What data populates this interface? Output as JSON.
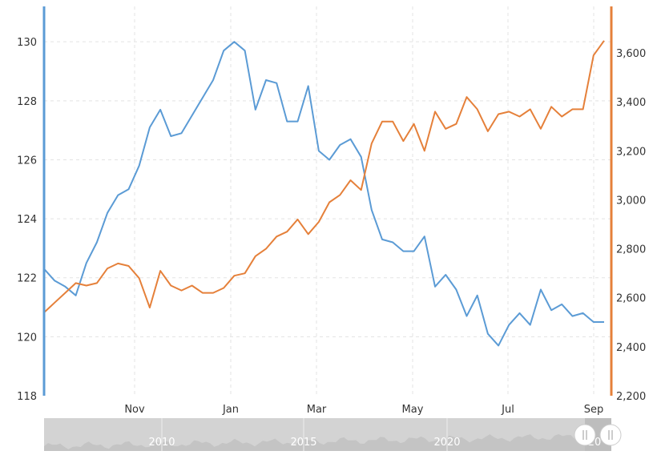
{
  "chart_data": {
    "type": "line",
    "x_unit": "week",
    "x_ticks": [
      "Nov",
      "Jan",
      "Mar",
      "May",
      "Jul",
      "Sep"
    ],
    "y_left": {
      "ticks": [
        "118",
        "120",
        "122",
        "124",
        "126",
        "128",
        "130"
      ],
      "range": [
        118,
        131.2
      ],
      "color": "#5b9bd5"
    },
    "y_right": {
      "ticks": [
        "2,200",
        "2,400",
        "2,600",
        "2,800",
        "3,000",
        "3,200",
        "3,400",
        "3,600"
      ],
      "range": [
        2200,
        3790
      ],
      "color": "#e5803a"
    },
    "grid": true,
    "series": [
      {
        "axis": "left",
        "color": "#5b9bd5",
        "values": [
          122.3,
          121.9,
          121.7,
          121.4,
          122.5,
          123.2,
          124.2,
          124.8,
          125.0,
          125.8,
          127.1,
          127.7,
          126.8,
          126.9,
          127.5,
          128.1,
          128.7,
          129.7,
          130.0,
          129.7,
          127.7,
          128.7,
          128.6,
          127.3,
          127.3,
          128.5,
          126.3,
          126.0,
          126.5,
          126.7,
          126.1,
          124.3,
          123.3,
          123.2,
          122.9,
          122.9,
          123.4,
          121.7,
          122.1,
          121.6,
          120.7,
          121.4,
          120.1,
          119.7,
          120.4,
          120.8,
          120.4,
          121.6,
          120.9,
          121.1,
          120.7,
          120.8,
          120.5,
          120.5
        ]
      },
      {
        "axis": "right",
        "color": "#e5803a",
        "values": [
          2540,
          2580,
          2620,
          2660,
          2650,
          2660,
          2720,
          2740,
          2730,
          2680,
          2560,
          2710,
          2650,
          2630,
          2650,
          2620,
          2620,
          2640,
          2690,
          2700,
          2770,
          2800,
          2850,
          2870,
          2920,
          2860,
          2910,
          2990,
          3020,
          3080,
          3040,
          3230,
          3320,
          3320,
          3240,
          3310,
          3200,
          3360,
          3290,
          3310,
          3420,
          3370,
          3280,
          3350,
          3360,
          3340,
          3370,
          3290,
          3380,
          3340,
          3370,
          3370,
          3590,
          3650
        ]
      }
    ],
    "navigator": {
      "labels": [
        "2010",
        "2015",
        "2020",
        "20"
      ]
    }
  }
}
